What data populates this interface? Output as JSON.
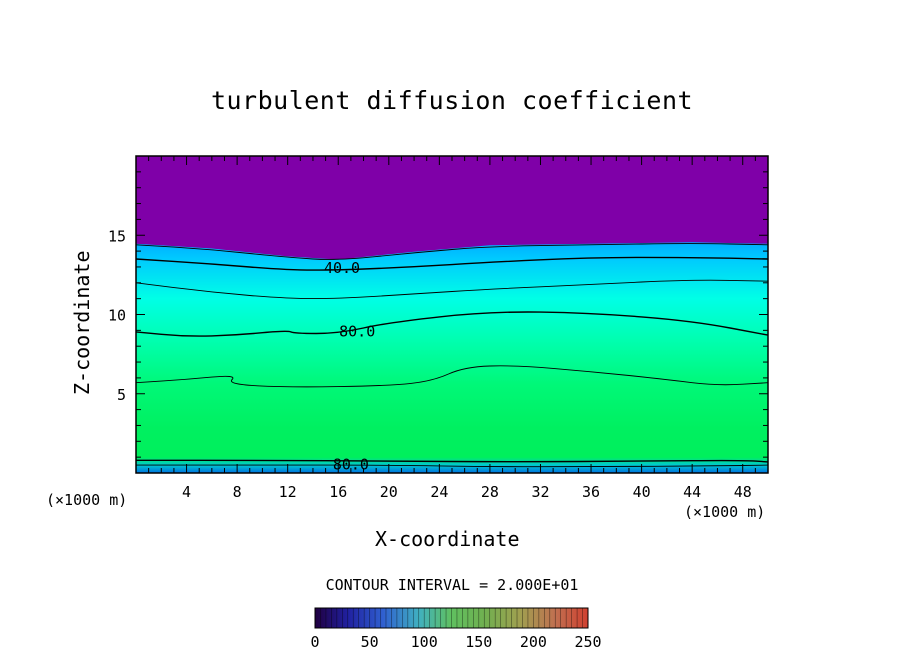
{
  "chart_data": {
    "type": "heatmap",
    "title": "turbulent diffusion coefficient",
    "xlabel": "X-coordinate",
    "ylabel": "Z-coordinate",
    "x_unit_left": "(×1000 m)",
    "x_unit_right": "(×1000 m)",
    "xlim": [
      0,
      50
    ],
    "ylim": [
      0,
      20
    ],
    "x_ticks": [
      4,
      8,
      12,
      16,
      20,
      24,
      28,
      32,
      36,
      40,
      44,
      48
    ],
    "y_ticks": [
      5,
      10,
      15
    ],
    "contour_interval_text": "CONTOUR INTERVAL = 2.000E+01",
    "contour_labels": [
      {
        "text": "40.0",
        "x": 16.3,
        "z": 12.8
      },
      {
        "text": "80.0",
        "x": 17.5,
        "z": 8.8
      },
      {
        "text": "80.0",
        "x": 17.0,
        "z": 0.4
      }
    ],
    "contour_lines": [
      {
        "level": 20,
        "points": [
          [
            0,
            14.4
          ],
          [
            6,
            14.1
          ],
          [
            12,
            13.6
          ],
          [
            16,
            13.4
          ],
          [
            22,
            13.9
          ],
          [
            28,
            14.3
          ],
          [
            36,
            14.4
          ],
          [
            44,
            14.5
          ],
          [
            50,
            14.4
          ]
        ]
      },
      {
        "level": 40,
        "points": [
          [
            0,
            13.5
          ],
          [
            6,
            13.2
          ],
          [
            12,
            12.8
          ],
          [
            16,
            12.8
          ],
          [
            22,
            13.0
          ],
          [
            28,
            13.3
          ],
          [
            36,
            13.6
          ],
          [
            44,
            13.6
          ],
          [
            50,
            13.5
          ]
        ]
      },
      {
        "level": 60,
        "points": [
          [
            0,
            12.0
          ],
          [
            6,
            11.4
          ],
          [
            12,
            11.0
          ],
          [
            16,
            11.0
          ],
          [
            22,
            11.3
          ],
          [
            28,
            11.6
          ],
          [
            36,
            11.9
          ],
          [
            44,
            12.2
          ],
          [
            50,
            12.1
          ]
        ]
      },
      {
        "level": 80,
        "points": [
          [
            0,
            8.9
          ],
          [
            4,
            8.6
          ],
          [
            8,
            8.7
          ],
          [
            12,
            9.0
          ],
          [
            12.5,
            8.8
          ],
          [
            16,
            8.8
          ],
          [
            20,
            9.5
          ],
          [
            28,
            10.2
          ],
          [
            36,
            10.1
          ],
          [
            44,
            9.6
          ],
          [
            50,
            8.7
          ]
        ]
      },
      {
        "level": 100,
        "points": [
          [
            0,
            5.7
          ],
          [
            4,
            5.9
          ],
          [
            8,
            6.2
          ],
          [
            7.2,
            5.6
          ],
          [
            12,
            5.4
          ],
          [
            20,
            5.5
          ],
          [
            23.5,
            5.8
          ],
          [
            26,
            6.7
          ],
          [
            30,
            6.8
          ],
          [
            36,
            6.4
          ],
          [
            42,
            5.9
          ],
          [
            46,
            5.5
          ],
          [
            50,
            5.7
          ]
        ]
      },
      {
        "level": 80,
        "points": [
          [
            0,
            0.8
          ],
          [
            10,
            0.8
          ],
          [
            20,
            0.75
          ],
          [
            30,
            0.7
          ],
          [
            40,
            0.75
          ],
          [
            48,
            0.8
          ],
          [
            50,
            0.7
          ]
        ]
      },
      {
        "level": 60,
        "points": [
          [
            0,
            0.5
          ],
          [
            10,
            0.5
          ],
          [
            20,
            0.5
          ],
          [
            28,
            0.4
          ],
          [
            36,
            0.4
          ],
          [
            46,
            0.45
          ],
          [
            50,
            0.5
          ]
        ]
      }
    ],
    "colorbar": {
      "min": 0,
      "max": 250,
      "ticks": [
        0,
        50,
        100,
        150,
        200,
        250
      ]
    },
    "colors": {
      "top_region": "#7f00a8",
      "deep_blue": "#0000ff",
      "cyan": "#00ffe8",
      "green": "#00f060"
    }
  }
}
